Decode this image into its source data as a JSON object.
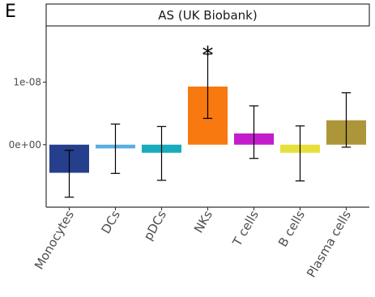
{
  "panel_label": "E",
  "chart_data": {
    "type": "bar",
    "title": "AS (UK Biobank)",
    "xlabel": "",
    "ylabel": "",
    "categories": [
      "Monocytes",
      "DCs",
      "pDCs",
      "NKs",
      "T cells",
      "B cells",
      "Plasma cells"
    ],
    "values": [
      -4.5e-09,
      -6e-10,
      -1.3e-09,
      9.3e-09,
      1.8e-09,
      -1.3e-09,
      3.9e-09
    ],
    "error_low": [
      -8.4e-09,
      -4.6e-09,
      -5.7e-09,
      4.2e-09,
      -2.2e-09,
      -5.8e-09,
      -4e-10
    ],
    "error_high": [
      -9e-10,
      3.3e-09,
      2.9e-09,
      1.45e-08,
      6.2e-09,
      3e-09,
      8.3e-09
    ],
    "colors": [
      "#263f8c",
      "#5aaee0",
      "#18adbd",
      "#f7790f",
      "#c21ccc",
      "#e7e03a",
      "#ad963a"
    ],
    "yticks": [
      0,
      1e-08
    ],
    "ytick_labels": [
      "0e+00",
      "1e-08"
    ],
    "ylim": [
      -1e-08,
      1.9e-08
    ],
    "annotations": [
      {
        "category": "NKs",
        "text": "*"
      }
    ],
    "grid": false,
    "legend": "none"
  }
}
